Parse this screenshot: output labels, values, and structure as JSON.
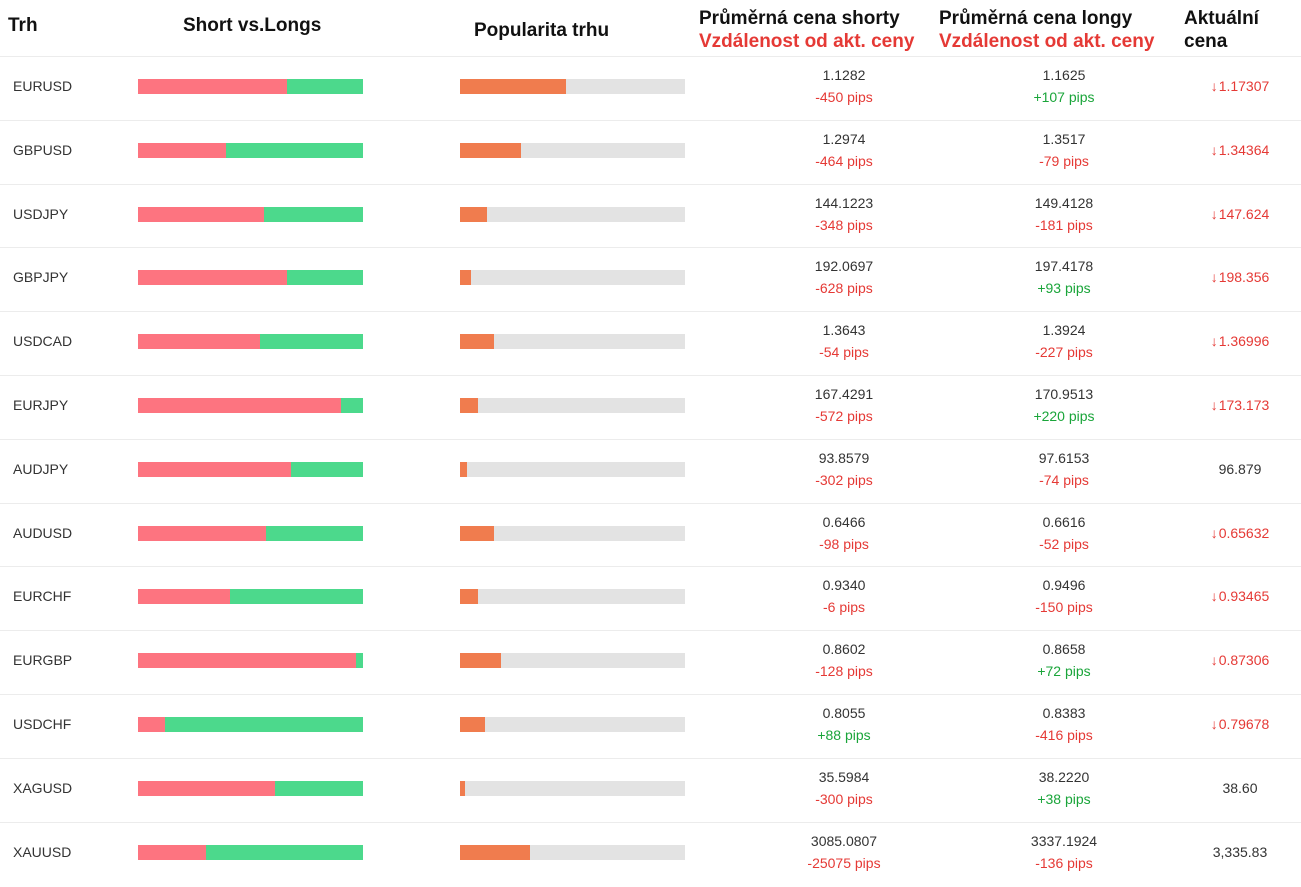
{
  "headers": {
    "market": "Trh",
    "short_vs_longs": "Short vs.Longs",
    "popularity": "Popularita trhu",
    "avg_short": "Průměrná cena shorty",
    "avg_short_sub": "Vzdálenost od akt. ceny",
    "avg_long": "Průměrná cena longy",
    "avg_long_sub": "Vzdálenost od akt. ceny",
    "current_1": "Aktuální",
    "current_2": "cena"
  },
  "colors": {
    "short_bar": "#fd7480",
    "long_bar": "#4cd98c",
    "popularity_fill": "#f07c4e",
    "popularity_track": "#e3e3e3",
    "negative": "#e53935",
    "positive": "#1aa53a"
  },
  "rows": [
    {
      "market": "EURUSD",
      "short_pct": 66,
      "popularity_pct": 47,
      "short_price": "1.1282",
      "short_pips": "-450 pips",
      "short_sign": "neg",
      "long_price": "1.1625",
      "long_pips": "+107 pips",
      "long_sign": "pos",
      "current": "1.17307",
      "trend": "down"
    },
    {
      "market": "GBPUSD",
      "short_pct": 39,
      "popularity_pct": 27,
      "short_price": "1.2974",
      "short_pips": "-464 pips",
      "short_sign": "neg",
      "long_price": "1.3517",
      "long_pips": "-79 pips",
      "long_sign": "neg",
      "current": "1.34364",
      "trend": "down"
    },
    {
      "market": "USDJPY",
      "short_pct": 56,
      "popularity_pct": 12,
      "short_price": "144.1223",
      "short_pips": "-348 pips",
      "short_sign": "neg",
      "long_price": "149.4128",
      "long_pips": "-181 pips",
      "long_sign": "neg",
      "current": "147.624",
      "trend": "down"
    },
    {
      "market": "GBPJPY",
      "short_pct": 66,
      "popularity_pct": 5,
      "short_price": "192.0697",
      "short_pips": "-628 pips",
      "short_sign": "neg",
      "long_price": "197.4178",
      "long_pips": "+93 pips",
      "long_sign": "pos",
      "current": "198.356",
      "trend": "down"
    },
    {
      "market": "USDCAD",
      "short_pct": 54,
      "popularity_pct": 15,
      "short_price": "1.3643",
      "short_pips": "-54 pips",
      "short_sign": "neg",
      "long_price": "1.3924",
      "long_pips": "-227 pips",
      "long_sign": "neg",
      "current": "1.36996",
      "trend": "down"
    },
    {
      "market": "EURJPY",
      "short_pct": 90,
      "popularity_pct": 8,
      "short_price": "167.4291",
      "short_pips": "-572 pips",
      "short_sign": "neg",
      "long_price": "170.9513",
      "long_pips": "+220 pips",
      "long_sign": "pos",
      "current": "173.173",
      "trend": "down"
    },
    {
      "market": "AUDJPY",
      "short_pct": 68,
      "popularity_pct": 3,
      "short_price": "93.8579",
      "short_pips": "-302 pips",
      "short_sign": "neg",
      "long_price": "97.6153",
      "long_pips": "-74 pips",
      "long_sign": "neg",
      "current": "96.879",
      "trend": "flat"
    },
    {
      "market": "AUDUSD",
      "short_pct": 57,
      "popularity_pct": 15,
      "short_price": "0.6466",
      "short_pips": "-98 pips",
      "short_sign": "neg",
      "long_price": "0.6616",
      "long_pips": "-52 pips",
      "long_sign": "neg",
      "current": "0.65632",
      "trend": "down"
    },
    {
      "market": "EURCHF",
      "short_pct": 41,
      "popularity_pct": 8,
      "short_price": "0.9340",
      "short_pips": "-6 pips",
      "short_sign": "neg",
      "long_price": "0.9496",
      "long_pips": "-150 pips",
      "long_sign": "neg",
      "current": "0.93465",
      "trend": "down"
    },
    {
      "market": "EURGBP",
      "short_pct": 97,
      "popularity_pct": 18,
      "short_price": "0.8602",
      "short_pips": "-128 pips",
      "short_sign": "neg",
      "long_price": "0.8658",
      "long_pips": "+72 pips",
      "long_sign": "pos",
      "current": "0.87306",
      "trend": "down"
    },
    {
      "market": "USDCHF",
      "short_pct": 12,
      "popularity_pct": 11,
      "short_price": "0.8055",
      "short_pips": "+88 pips",
      "short_sign": "pos",
      "long_price": "0.8383",
      "long_pips": "-416 pips",
      "long_sign": "neg",
      "current": "0.79678",
      "trend": "down"
    },
    {
      "market": "XAGUSD",
      "short_pct": 61,
      "popularity_pct": 2,
      "short_price": "35.5984",
      "short_pips": "-300 pips",
      "short_sign": "neg",
      "long_price": "38.2220",
      "long_pips": "+38 pips",
      "long_sign": "pos",
      "current": "38.60",
      "trend": "flat"
    },
    {
      "market": "XAUUSD",
      "short_pct": 30,
      "popularity_pct": 31,
      "short_price": "3085.0807",
      "short_pips": "-25075 pips",
      "short_sign": "neg",
      "long_price": "3337.1924",
      "long_pips": "-136 pips",
      "long_sign": "neg",
      "current": "3,335.83",
      "trend": "flat"
    }
  ],
  "trend_down_icon": "arrow-down-icon"
}
